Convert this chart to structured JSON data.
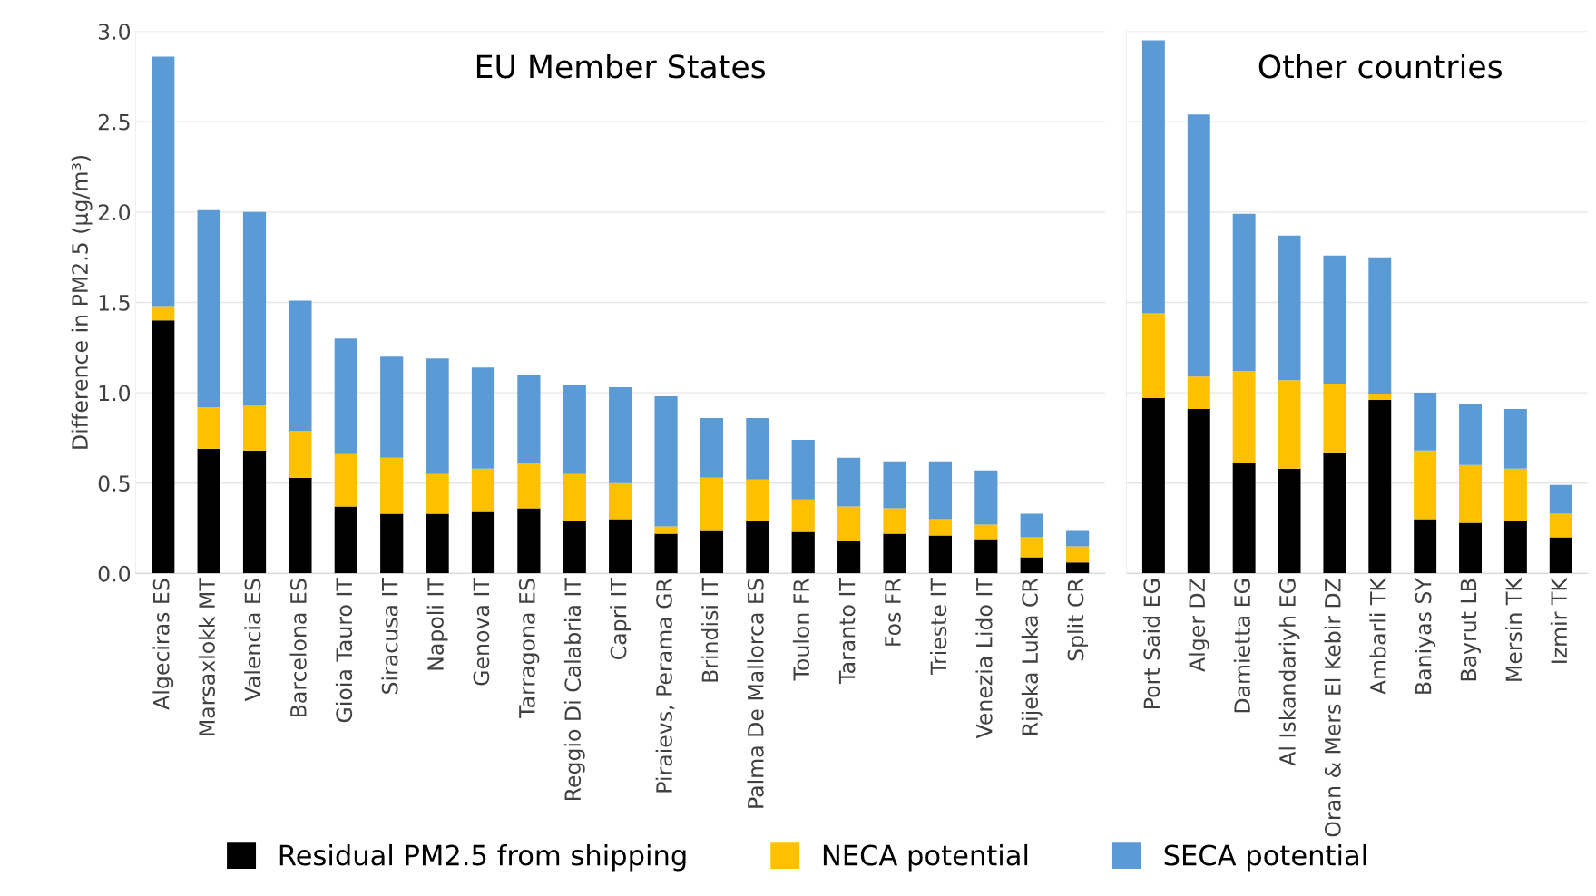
{
  "chart_data": [
    {
      "type": "bar",
      "stacked": true,
      "ylabel": "Difference in PM2.5 (µg/m³)",
      "annotations": [
        "EU Member States"
      ],
      "ylim": [
        0,
        3.0
      ],
      "yticks": [
        {
          "value": 0,
          "label": "0.0"
        },
        {
          "value": 0.5,
          "label": "0.5"
        },
        {
          "value": 1.0,
          "label": "1.0"
        },
        {
          "value": 1.5,
          "label": "1.5"
        },
        {
          "value": 2.0,
          "label": "2.0"
        },
        {
          "value": 2.5,
          "label": "2.5"
        },
        {
          "value": 3.0,
          "label": "3.0"
        }
      ],
      "grid": "y",
      "legend": "bottom",
      "categories": [
        "Algeciras ES",
        "Marsaxlokk MT",
        "Valencia ES",
        "Barcelona ES",
        "Gioia Tauro IT",
        "Siracusa IT",
        "Napoli IT",
        "Genova IT",
        "Tarragona ES",
        "Reggio Di Calabria IT",
        "Capri IT",
        "Piraievs, Perama GR",
        "Brindisi IT",
        "Palma De Mallorca ES",
        "Toulon FR",
        "Taranto IT",
        "Fos FR",
        "Trieste IT",
        "Venezia Lido IT",
        "Rijeka Luka CR",
        "Split CR"
      ],
      "series": [
        {
          "name": "Residual PM2.5 from shipping",
          "color": "#000000",
          "values": [
            1.4,
            0.69,
            0.68,
            0.53,
            0.37,
            0.33,
            0.33,
            0.34,
            0.36,
            0.29,
            0.3,
            0.22,
            0.24,
            0.29,
            0.23,
            0.18,
            0.22,
            0.21,
            0.19,
            0.09,
            0.06
          ]
        },
        {
          "name": "NECA potential",
          "color": "#ffc000",
          "values": [
            0.08,
            0.23,
            0.25,
            0.26,
            0.29,
            0.31,
            0.22,
            0.24,
            0.25,
            0.26,
            0.2,
            0.04,
            0.29,
            0.23,
            0.18,
            0.19,
            0.14,
            0.09,
            0.08,
            0.11,
            0.09
          ]
        },
        {
          "name": "SECA potential",
          "color": "#5b9bd5",
          "values": [
            1.38,
            1.09,
            1.07,
            0.72,
            0.64,
            0.56,
            0.64,
            0.56,
            0.49,
            0.49,
            0.53,
            0.72,
            0.33,
            0.34,
            0.33,
            0.27,
            0.26,
            0.32,
            0.3,
            0.13,
            0.09
          ]
        }
      ]
    },
    {
      "type": "bar",
      "stacked": true,
      "annotations": [
        "Other countries"
      ],
      "ylim": [
        0,
        3.0
      ],
      "tick_labels": "x",
      "grid": "y",
      "categories": [
        "Port Said EG",
        "Alger DZ",
        "Damietta EG",
        "Al Iskandariyh EG",
        "Oran & Mers El Kebir DZ",
        "Ambarli TK",
        "Baniyas SY",
        "Bayrut LB",
        "Mersin TK",
        "Izmir TK"
      ],
      "series": [
        {
          "color": "#000000",
          "values": [
            0.97,
            0.91,
            0.61,
            0.58,
            0.67,
            0.96,
            0.3,
            0.28,
            0.29,
            0.2
          ]
        },
        {
          "color": "#ffc000",
          "values": [
            0.47,
            0.18,
            0.51,
            0.49,
            0.38,
            0.03,
            0.38,
            0.32,
            0.29,
            0.13
          ]
        },
        {
          "color": "#5b9bd5",
          "values": [
            1.51,
            1.45,
            0.87,
            0.8,
            0.71,
            0.76,
            0.32,
            0.34,
            0.33,
            0.16
          ]
        }
      ]
    }
  ]
}
